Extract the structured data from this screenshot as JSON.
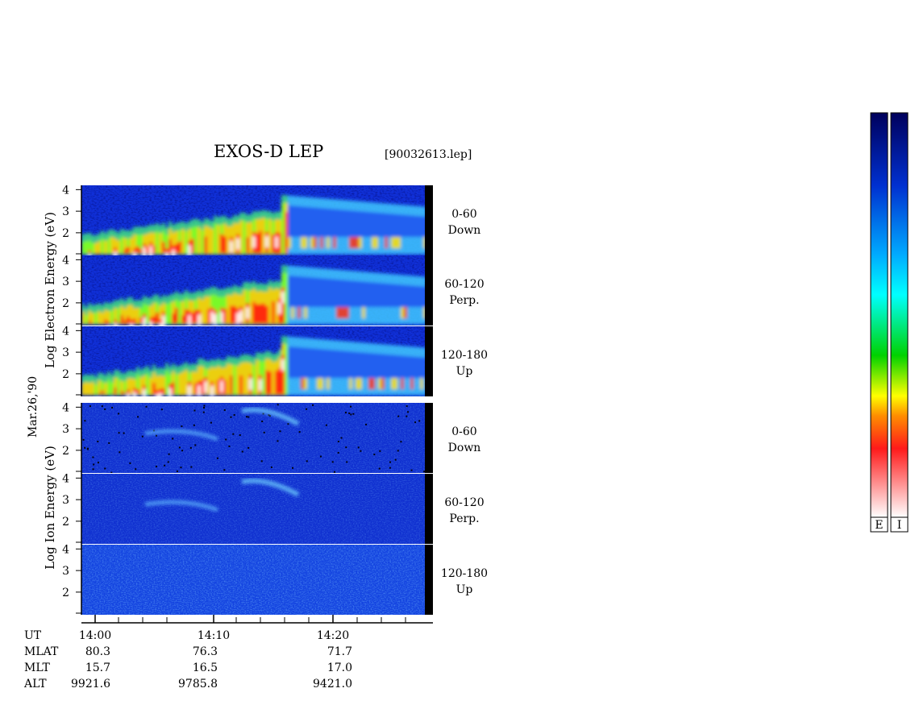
{
  "header": {
    "title": "EXOS-D LEP",
    "file": "[90032613.lep]"
  },
  "labels": {
    "electron_axis": "Log  Electron  Energy  (eV)",
    "ion_axis": "Log  Ion  Energy  (eV)",
    "date": "Mar.26,'90"
  },
  "panel_ticks": [
    "4",
    "3",
    "2"
  ],
  "panels": [
    {
      "species": "electron",
      "angle": "0-60",
      "dir": "Down"
    },
    {
      "species": "electron",
      "angle": "60-120",
      "dir": "Perp."
    },
    {
      "species": "electron",
      "angle": "120-180",
      "dir": "Up"
    },
    {
      "species": "ion",
      "angle": "0-60",
      "dir": "Down"
    },
    {
      "species": "ion",
      "angle": "60-120",
      "dir": "Perp."
    },
    {
      "species": "ion",
      "angle": "120-180",
      "dir": "Up"
    }
  ],
  "ephemeris": {
    "row_labels": [
      "UT",
      "MLAT",
      "MLT",
      "ALT"
    ],
    "columns": [
      {
        "UT": "14:00",
        "MLAT": "80.3",
        "MLT": "15.7",
        "ALT": "9921.6"
      },
      {
        "UT": "14:10",
        "MLAT": "76.3",
        "MLT": "16.5",
        "ALT": "9785.8"
      },
      {
        "UT": "14:20",
        "MLAT": "71.7",
        "MLT": "17.0",
        "ALT": "9421.0"
      }
    ]
  },
  "colorbars": {
    "left_label": "E",
    "right_label": "I"
  },
  "chart_data": {
    "type": "heatmap",
    "title": "EXOS-D LEP",
    "subtitle": "[90032613.lep]",
    "xlabel": "UT",
    "x_ticks": [
      "14:00",
      "14:10",
      "14:20"
    ],
    "ylabel_electron": "Log Electron Energy (eV)",
    "ylabel_ion": "Log Ion Energy (eV)",
    "y_ticks": [
      4,
      3,
      2
    ],
    "ylim": [
      1,
      4.2
    ],
    "pitch_angle_bins": [
      "0-60 Down",
      "60-120 Perp.",
      "120-180 Up"
    ],
    "colormap": [
      "#ffffff",
      "#ff2020",
      "#ffff00",
      "#00c800",
      "#00ffff",
      "#0050ff",
      "#00005a"
    ]
  }
}
